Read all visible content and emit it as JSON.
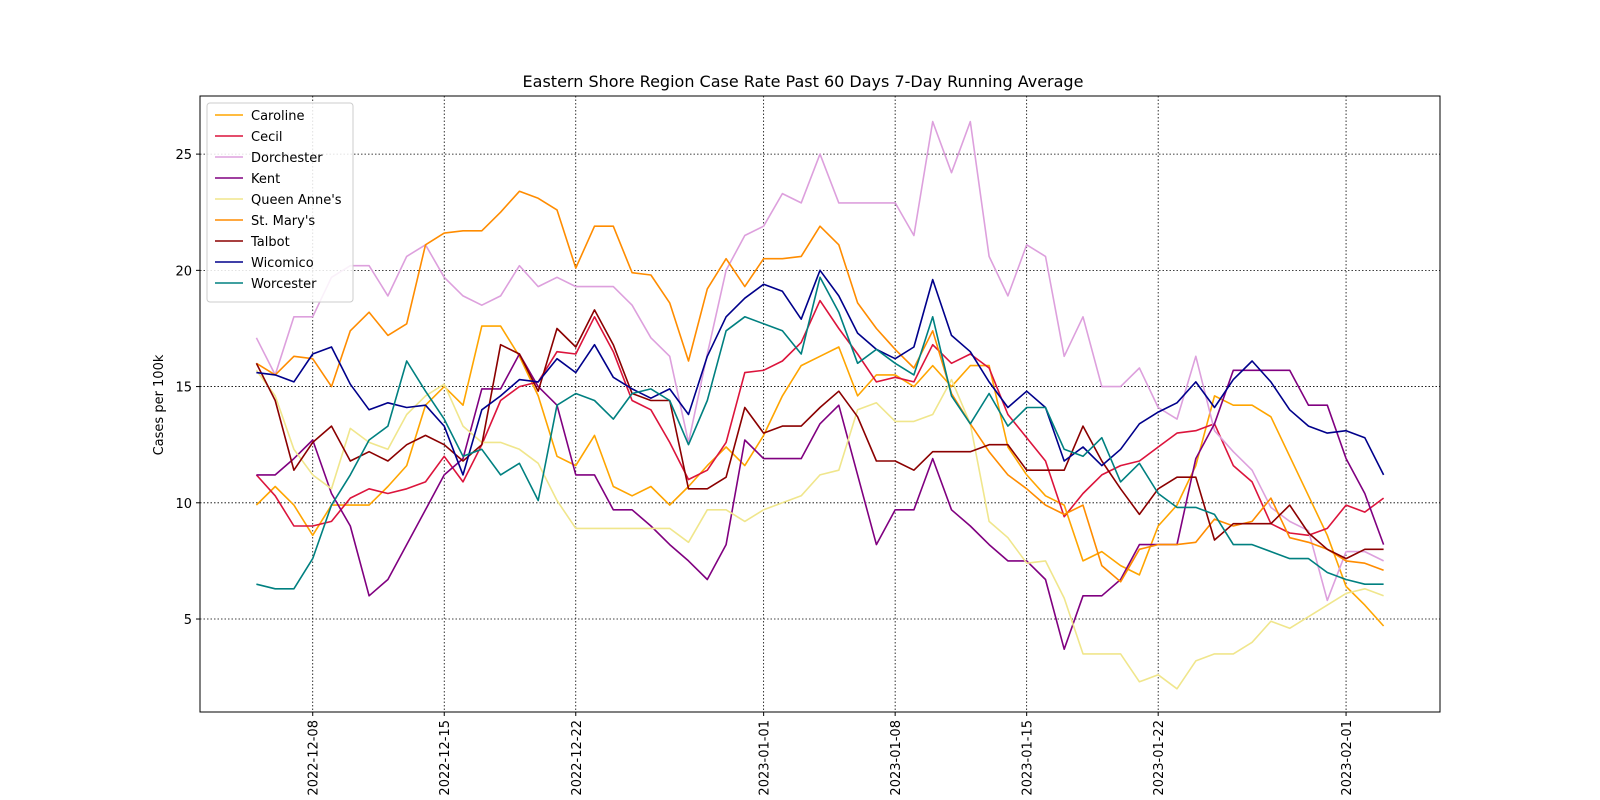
{
  "chart_data": {
    "type": "line",
    "title": "Eastern Shore Region Case Rate  Past 60 Days 7-Day Running Average",
    "xlabel": "",
    "ylabel": "Cases per 100k",
    "x_start": "2022-12-05",
    "x": [
      "2022-12-05",
      "2022-12-06",
      "2022-12-07",
      "2022-12-08",
      "2022-12-09",
      "2022-12-10",
      "2022-12-11",
      "2022-12-12",
      "2022-12-13",
      "2022-12-14",
      "2022-12-15",
      "2022-12-16",
      "2022-12-17",
      "2022-12-18",
      "2022-12-19",
      "2022-12-20",
      "2022-12-21",
      "2022-12-22",
      "2022-12-23",
      "2022-12-24",
      "2022-12-25",
      "2022-12-26",
      "2022-12-27",
      "2022-12-28",
      "2022-12-29",
      "2022-12-30",
      "2022-12-31",
      "2023-01-01",
      "2023-01-02",
      "2023-01-03",
      "2023-01-04",
      "2023-01-05",
      "2023-01-06",
      "2023-01-07",
      "2023-01-08",
      "2023-01-09",
      "2023-01-10",
      "2023-01-11",
      "2023-01-12",
      "2023-01-13",
      "2023-01-14",
      "2023-01-15",
      "2023-01-16",
      "2023-01-17",
      "2023-01-18",
      "2023-01-19",
      "2023-01-20",
      "2023-01-21",
      "2023-01-22",
      "2023-01-23",
      "2023-01-24",
      "2023-01-25",
      "2023-01-26",
      "2023-01-27",
      "2023-01-28",
      "2023-01-29",
      "2023-01-30",
      "2023-01-31",
      "2023-02-01",
      "2023-02-02",
      "2023-02-03"
    ],
    "x_ticks": [
      "2022-12-08",
      "2022-12-15",
      "2022-12-22",
      "2023-01-01",
      "2023-01-08",
      "2023-01-15",
      "2023-01-22",
      "2023-02-01"
    ],
    "x_range": [
      "2022-12-02",
      "2023-02-06"
    ],
    "y_ticks": [
      5,
      10,
      15,
      20,
      25
    ],
    "ylim": [
      1,
      27.5
    ],
    "grid": "dotted",
    "legend_position": "upper-left",
    "series": [
      {
        "name": "Caroline",
        "color": "#ffa500",
        "values": [
          9.9,
          10.7,
          9.9,
          8.6,
          9.9,
          9.9,
          9.9,
          10.7,
          11.6,
          14.2,
          15.0,
          14.2,
          17.6,
          17.6,
          16.3,
          14.6,
          12.0,
          11.6,
          12.9,
          10.7,
          10.3,
          10.7,
          9.9,
          10.7,
          11.6,
          12.4,
          11.6,
          12.9,
          14.6,
          15.9,
          16.3,
          16.7,
          14.6,
          15.5,
          15.5,
          15.0,
          15.9,
          15.0,
          15.9,
          15.9,
          12.4,
          11.2,
          10.3,
          9.9,
          7.5,
          7.9,
          7.3,
          6.9,
          9.0,
          9.9,
          11.6,
          14.6,
          14.2,
          14.2,
          13.7,
          12.0,
          10.3,
          8.6,
          6.4,
          5.6,
          4.7
        ]
      },
      {
        "name": "Cecil",
        "color": "#dc143c",
        "values": [
          11.2,
          10.3,
          9.0,
          9.0,
          9.2,
          10.2,
          10.6,
          10.4,
          10.6,
          10.9,
          12.0,
          10.9,
          12.5,
          14.4,
          15.0,
          15.2,
          16.5,
          16.4,
          18.0,
          16.5,
          14.4,
          14.0,
          12.6,
          11.0,
          11.4,
          12.6,
          15.6,
          15.7,
          16.1,
          16.9,
          18.7,
          17.5,
          16.4,
          15.2,
          15.4,
          15.2,
          16.8,
          16.0,
          16.4,
          15.8,
          13.8,
          12.8,
          11.8,
          9.4,
          10.4,
          11.2,
          11.6,
          11.8,
          12.4,
          13.0,
          13.1,
          13.4,
          11.6,
          10.9,
          9.1,
          8.7,
          8.6,
          8.9,
          9.9,
          9.6,
          10.2
        ]
      },
      {
        "name": "Dorchester",
        "color": "#dda0dd",
        "values": [
          17.1,
          15.5,
          18.0,
          18.0,
          19.7,
          20.2,
          20.2,
          18.9,
          20.6,
          21.1,
          19.7,
          18.9,
          18.5,
          18.9,
          20.2,
          19.3,
          19.7,
          19.3,
          19.3,
          19.3,
          18.5,
          17.1,
          16.3,
          12.6,
          16.4,
          20.0,
          21.5,
          21.9,
          23.3,
          22.9,
          25.0,
          22.9,
          22.9,
          22.9,
          22.9,
          21.5,
          26.4,
          24.2,
          26.4,
          20.6,
          18.9,
          21.1,
          20.6,
          16.3,
          18.0,
          15.0,
          15.0,
          15.8,
          14.1,
          13.6,
          16.3,
          13.1,
          12.2,
          11.4,
          9.8,
          9.2,
          8.8,
          5.8,
          7.9,
          7.9,
          7.5
        ]
      },
      {
        "name": "Kent",
        "color": "#800080",
        "values": [
          11.2,
          11.2,
          11.9,
          12.7,
          10.4,
          9.0,
          6.0,
          6.7,
          8.2,
          9.7,
          11.2,
          11.9,
          14.9,
          14.9,
          16.4,
          15.0,
          14.2,
          11.2,
          11.2,
          9.7,
          9.7,
          9.0,
          8.2,
          7.5,
          6.7,
          8.2,
          12.7,
          11.9,
          11.9,
          11.9,
          13.4,
          14.2,
          11.2,
          8.2,
          9.7,
          9.7,
          11.9,
          9.7,
          9.0,
          8.2,
          7.5,
          7.5,
          6.7,
          3.7,
          6.0,
          6.0,
          6.7,
          8.2,
          8.2,
          8.2,
          11.9,
          13.4,
          15.7,
          15.7,
          15.7,
          15.7,
          14.2,
          14.2,
          11.9,
          10.4,
          8.2
        ]
      },
      {
        "name": "Queen Anne's",
        "color": "#f0e68c",
        "values": [
          15.7,
          14.6,
          12.3,
          11.2,
          10.6,
          13.2,
          12.6,
          12.3,
          13.8,
          14.6,
          15.1,
          13.3,
          12.6,
          12.6,
          12.3,
          11.7,
          10.1,
          8.9,
          8.9,
          8.9,
          8.9,
          8.9,
          8.9,
          8.3,
          9.7,
          9.7,
          9.2,
          9.7,
          10.0,
          10.3,
          11.2,
          11.4,
          14.0,
          14.3,
          13.5,
          13.5,
          13.8,
          15.3,
          13.4,
          9.2,
          8.5,
          7.4,
          7.5,
          5.9,
          3.5,
          3.5,
          3.5,
          2.3,
          2.6,
          2.0,
          3.2,
          3.5,
          3.5,
          4.0,
          4.9,
          4.6,
          5.1,
          5.6,
          6.1,
          6.3,
          6.0
        ]
      },
      {
        "name": "St. Mary's",
        "color": "#ff8c00",
        "values": [
          16.0,
          15.5,
          16.3,
          16.2,
          15.0,
          17.4,
          18.2,
          17.2,
          17.7,
          21.1,
          21.6,
          21.7,
          21.7,
          22.5,
          23.4,
          23.1,
          22.6,
          20.1,
          21.9,
          21.9,
          19.9,
          19.8,
          18.6,
          16.1,
          19.2,
          20.5,
          19.3,
          20.5,
          20.5,
          20.6,
          21.9,
          21.1,
          18.6,
          17.5,
          16.6,
          15.8,
          17.4,
          14.7,
          13.4,
          12.2,
          11.2,
          10.6,
          9.9,
          9.5,
          9.9,
          7.3,
          6.6,
          8.0,
          8.2,
          8.2,
          8.3,
          9.3,
          9.0,
          9.2,
          10.2,
          8.5,
          8.3,
          8.0,
          7.5,
          7.4,
          7.1
        ]
      },
      {
        "name": "Talbot",
        "color": "#8b0000",
        "values": [
          16.0,
          14.4,
          11.4,
          12.6,
          13.3,
          11.8,
          12.2,
          11.8,
          12.5,
          12.9,
          12.5,
          11.8,
          12.5,
          16.8,
          16.4,
          14.8,
          17.5,
          16.7,
          18.3,
          16.8,
          14.7,
          14.4,
          14.4,
          10.6,
          10.6,
          11.1,
          14.1,
          13.0,
          13.3,
          13.3,
          14.1,
          14.8,
          13.7,
          11.8,
          11.8,
          11.4,
          12.2,
          12.2,
          12.2,
          12.5,
          12.5,
          11.4,
          11.4,
          11.4,
          13.3,
          11.8,
          10.6,
          9.5,
          10.6,
          11.1,
          11.1,
          8.4,
          9.1,
          9.1,
          9.1,
          9.9,
          8.7,
          8.0,
          7.6,
          8.0,
          8.0
        ]
      },
      {
        "name": "Wicomico",
        "color": "#00008b",
        "values": [
          15.6,
          15.5,
          15.2,
          16.4,
          16.7,
          15.1,
          14.0,
          14.3,
          14.1,
          14.2,
          13.3,
          11.2,
          14.0,
          14.6,
          15.3,
          15.2,
          16.2,
          15.6,
          16.8,
          15.4,
          14.9,
          14.5,
          14.9,
          13.8,
          16.3,
          18.0,
          18.8,
          19.4,
          19.1,
          17.9,
          20.0,
          18.9,
          17.3,
          16.6,
          16.2,
          16.7,
          19.6,
          17.2,
          16.5,
          15.2,
          14.1,
          14.8,
          14.1,
          11.8,
          12.4,
          11.6,
          12.3,
          13.4,
          13.9,
          14.3,
          15.2,
          14.1,
          15.3,
          16.1,
          15.2,
          14.0,
          13.3,
          13.0,
          13.1,
          12.8,
          11.2
        ]
      },
      {
        "name": "Worcester",
        "color": "#008080",
        "values": [
          6.5,
          6.3,
          6.3,
          7.6,
          9.9,
          11.2,
          12.7,
          13.3,
          16.1,
          14.8,
          13.6,
          12.0,
          12.3,
          11.2,
          11.7,
          10.1,
          14.2,
          14.7,
          14.4,
          13.6,
          14.7,
          14.9,
          14.4,
          12.5,
          14.4,
          17.4,
          18.0,
          17.7,
          17.4,
          16.4,
          19.7,
          18.2,
          16.0,
          16.6,
          16.0,
          15.5,
          18.0,
          14.6,
          13.4,
          14.7,
          13.3,
          14.1,
          14.1,
          12.3,
          12.0,
          12.8,
          10.9,
          11.7,
          10.4,
          9.8,
          9.8,
          9.5,
          8.2,
          8.2,
          7.9,
          7.6,
          7.6,
          7.0,
          6.7,
          6.5,
          6.5
        ]
      }
    ]
  }
}
